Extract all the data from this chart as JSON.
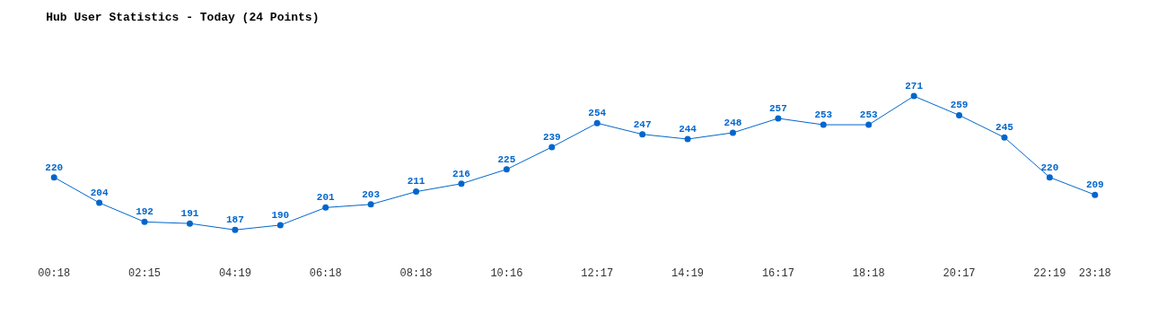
{
  "chart_data": {
    "type": "line",
    "title": "Hub User Statistics - Today (24 Points)",
    "categories": [
      "00:18",
      null,
      "02:15",
      null,
      "04:19",
      null,
      "06:18",
      null,
      "08:18",
      null,
      "10:16",
      null,
      "12:17",
      null,
      "14:19",
      null,
      "16:17",
      null,
      "18:18",
      null,
      "20:17",
      null,
      "22:19",
      "23:18"
    ],
    "series": [
      {
        "color": "#0066cc",
        "values": [
          220,
          204,
          192,
          191,
          187,
          190,
          201,
          203,
          211,
          216,
          225,
          239,
          254,
          247,
          244,
          248,
          257,
          253,
          253,
          271,
          259,
          245,
          220,
          209
        ]
      }
    ],
    "data_labels": true,
    "marker": "circle",
    "line_style": "solid",
    "legend": false
  }
}
